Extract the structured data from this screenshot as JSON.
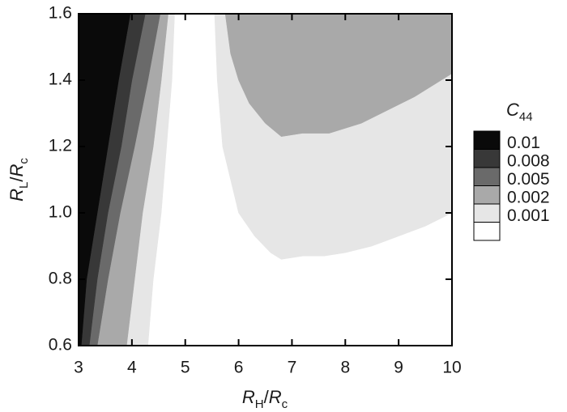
{
  "chart_data": {
    "type": "contour",
    "xlabel": [
      {
        "text": "R",
        "italic": true
      },
      {
        "text": "H",
        "sub": true
      },
      {
        "text": "/"
      },
      {
        "text": "R",
        "italic": true
      },
      {
        "text": "c",
        "sub": true
      }
    ],
    "ylabel": [
      {
        "text": "R",
        "italic": true
      },
      {
        "text": "L",
        "sub": true
      },
      {
        "text": "/"
      },
      {
        "text": "R",
        "italic": true
      },
      {
        "text": "c",
        "sub": true
      }
    ],
    "xlim": [
      3,
      10
    ],
    "xticks": [
      3,
      4,
      5,
      6,
      7,
      8,
      9,
      10
    ],
    "ylim": [
      0.6,
      1.6
    ],
    "yticks": [
      0.6,
      0.8,
      {
        "value": 1.0,
        "label": "1.0"
      },
      1.2,
      1.4,
      1.6
    ],
    "colorbar": {
      "title": [
        {
          "text": "C",
          "italic": true
        },
        {
          "text": "44",
          "sub": true
        }
      ],
      "levels": [
        0.01,
        0.008,
        0.005,
        0.002,
        0.001
      ],
      "colors": [
        "#0a0a0a",
        "#383838",
        "#6a6a6a",
        "#a9a9a9",
        "#e6e6e6",
        "#ffffff"
      ]
    },
    "regions": [
      {
        "color": "#e6e6e6",
        "polygons": [
          {
            "x": [
              3,
              4.3,
              4.4,
              4.55,
              4.65,
              4.75,
              4.8,
              3
            ],
            "y": [
              0.6,
              0.6,
              0.8,
              1.0,
              1.2,
              1.4,
              1.6,
              1.6
            ]
          },
          {
            "x": [
              5.55,
              5.6,
              5.7,
              5.85,
              6.0,
              6.3,
              6.6,
              6.8,
              7.2,
              7.6,
              8.0,
              8.5,
              9.0,
              9.5,
              10,
              10
            ],
            "y": [
              1.6,
              1.4,
              1.2,
              1.1,
              1.0,
              0.93,
              0.88,
              0.86,
              0.87,
              0.87,
              0.88,
              0.9,
              0.93,
              0.96,
              1.0,
              1.6
            ]
          }
        ]
      },
      {
        "color": "#a9a9a9",
        "polygons": [
          {
            "x": [
              3,
              3.9,
              4.05,
              4.2,
              4.4,
              4.55,
              4.68,
              3
            ],
            "y": [
              0.6,
              0.6,
              0.8,
              1.0,
              1.2,
              1.4,
              1.6,
              1.6
            ]
          },
          {
            "x": [
              5.75,
              5.85,
              6.0,
              6.2,
              6.5,
              6.8,
              7.2,
              7.7,
              8.3,
              8.8,
              9.3,
              9.7,
              10,
              10
            ],
            "y": [
              1.6,
              1.48,
              1.4,
              1.33,
              1.27,
              1.23,
              1.24,
              1.24,
              1.27,
              1.31,
              1.35,
              1.39,
              1.42,
              1.6
            ]
          }
        ]
      },
      {
        "color": "#6a6a6a",
        "polygons": [
          {
            "x": [
              3,
              3.35,
              3.55,
              3.78,
              4.05,
              4.3,
              4.53,
              3
            ],
            "y": [
              0.6,
              0.6,
              0.8,
              1.0,
              1.2,
              1.4,
              1.6,
              1.6
            ]
          }
        ]
      },
      {
        "color": "#383838",
        "polygons": [
          {
            "x": [
              3,
              3.2,
              3.35,
              3.55,
              3.8,
              4.0,
              4.25,
              3
            ],
            "y": [
              0.6,
              0.6,
              0.8,
              1.0,
              1.2,
              1.4,
              1.6,
              1.6
            ]
          }
        ]
      },
      {
        "color": "#0a0a0a",
        "polygons": [
          {
            "x": [
              3,
              3.05,
              3.15,
              3.35,
              3.55,
              3.75,
              3.97,
              3
            ],
            "y": [
              0.6,
              0.6,
              0.8,
              1.0,
              1.2,
              1.4,
              1.6,
              1.6
            ]
          }
        ]
      }
    ]
  }
}
